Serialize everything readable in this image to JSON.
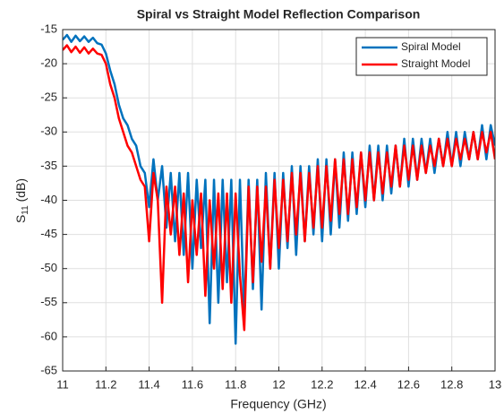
{
  "chart_data": {
    "type": "line",
    "title": "Spiral vs Straight Model Reflection Comparison",
    "xlabel": "Frequency (GHz)",
    "ylabel": [
      "S",
      "11",
      " (dB)"
    ],
    "x": [
      11,
      11.02,
      11.04,
      11.06,
      11.08,
      11.1,
      11.12,
      11.14,
      11.16,
      11.18,
      11.2,
      11.22,
      11.24,
      11.26,
      11.28,
      11.3,
      11.32,
      11.34,
      11.36,
      11.38,
      11.4,
      11.42,
      11.44,
      11.46,
      11.48,
      11.5,
      11.52,
      11.54,
      11.56,
      11.58,
      11.6,
      11.62,
      11.64,
      11.66,
      11.68,
      11.7,
      11.72,
      11.74,
      11.76,
      11.78,
      11.8,
      11.82,
      11.84,
      11.86,
      11.88,
      11.9,
      11.92,
      11.94,
      11.96,
      11.98,
      12,
      12.02,
      12.04,
      12.06,
      12.08,
      12.1,
      12.12,
      12.14,
      12.16,
      12.18,
      12.2,
      12.22,
      12.24,
      12.26,
      12.28,
      12.3,
      12.32,
      12.34,
      12.36,
      12.38,
      12.4,
      12.42,
      12.44,
      12.46,
      12.48,
      12.5,
      12.52,
      12.54,
      12.56,
      12.58,
      12.6,
      12.62,
      12.64,
      12.66,
      12.68,
      12.7,
      12.72,
      12.74,
      12.76,
      12.78,
      12.8,
      12.82,
      12.84,
      12.86,
      12.88,
      12.9,
      12.92,
      12.94,
      12.96,
      12.98,
      13
    ],
    "series": [
      {
        "name": "Spiral Model",
        "color": "#0072bd",
        "values": [
          -16.5,
          -15.8,
          -16.8,
          -15.9,
          -16.7,
          -16.0,
          -16.8,
          -16.2,
          -17.0,
          -17.2,
          -18.5,
          -21,
          -23,
          -26,
          -28,
          -29,
          -31,
          -32,
          -35,
          -36,
          -41,
          -34,
          -40,
          -35,
          -44,
          -36,
          -46,
          -36,
          -48,
          -36,
          -50,
          -37,
          -47,
          -37,
          -58,
          -37,
          -55,
          -37,
          -52,
          -37,
          -61,
          -37,
          -57,
          -37,
          -53,
          -37,
          -56,
          -36,
          -50,
          -36,
          -50,
          -36,
          -47,
          -35,
          -48,
          -35,
          -46,
          -35,
          -45,
          -34,
          -46,
          -34,
          -45,
          -34,
          -44,
          -33,
          -43,
          -33,
          -42,
          -33,
          -41,
          -32,
          -40,
          -32,
          -40,
          -32,
          -39,
          -32,
          -38,
          -31,
          -38,
          -31,
          -37,
          -31,
          -36,
          -31,
          -36,
          -31,
          -35,
          -30,
          -35,
          -30,
          -35,
          -30,
          -34,
          -30,
          -34,
          -29,
          -34,
          -29,
          -32
        ]
      },
      {
        "name": "Straight Model",
        "color": "#ff0000",
        "values": [
          -18.0,
          -17.3,
          -18.3,
          -17.5,
          -18.4,
          -17.6,
          -18.5,
          -17.8,
          -18.5,
          -18.7,
          -20,
          -23,
          -25,
          -28,
          -30,
          -32,
          -33,
          -35,
          -37,
          -38,
          -46,
          -36,
          -40,
          -55,
          -38,
          -45,
          -38,
          -48,
          -39,
          -52,
          -40,
          -48,
          -39,
          -54,
          -40,
          -50,
          -39,
          -53,
          -39,
          -55,
          -39,
          -51,
          -59,
          -38,
          -52,
          -38,
          -49,
          -38,
          -50,
          -37,
          -47,
          -37,
          -46,
          -36,
          -45,
          -36,
          -46,
          -36,
          -44,
          -35,
          -44,
          -35,
          -43,
          -34,
          -42,
          -34,
          -42,
          -34,
          -41,
          -33,
          -40,
          -33,
          -40,
          -33,
          -39,
          -33,
          -38,
          -32,
          -38,
          -32,
          -37,
          -32,
          -37,
          -32,
          -36,
          -32,
          -35,
          -31,
          -35,
          -31,
          -35,
          -31,
          -34,
          -31,
          -34,
          -30,
          -34,
          -30,
          -33,
          -30,
          -34
        ]
      }
    ],
    "xlim": [
      11,
      13
    ],
    "xticks": [
      11,
      11.2,
      11.4,
      11.6,
      11.8,
      12,
      12.2,
      12.4,
      12.6,
      12.8,
      13
    ],
    "ylim": [
      -65,
      -15
    ],
    "yticks": [
      -65,
      -60,
      -55,
      -50,
      -45,
      -40,
      -35,
      -30,
      -25,
      -20,
      -15
    ],
    "grid": true,
    "legend": "northeast"
  }
}
